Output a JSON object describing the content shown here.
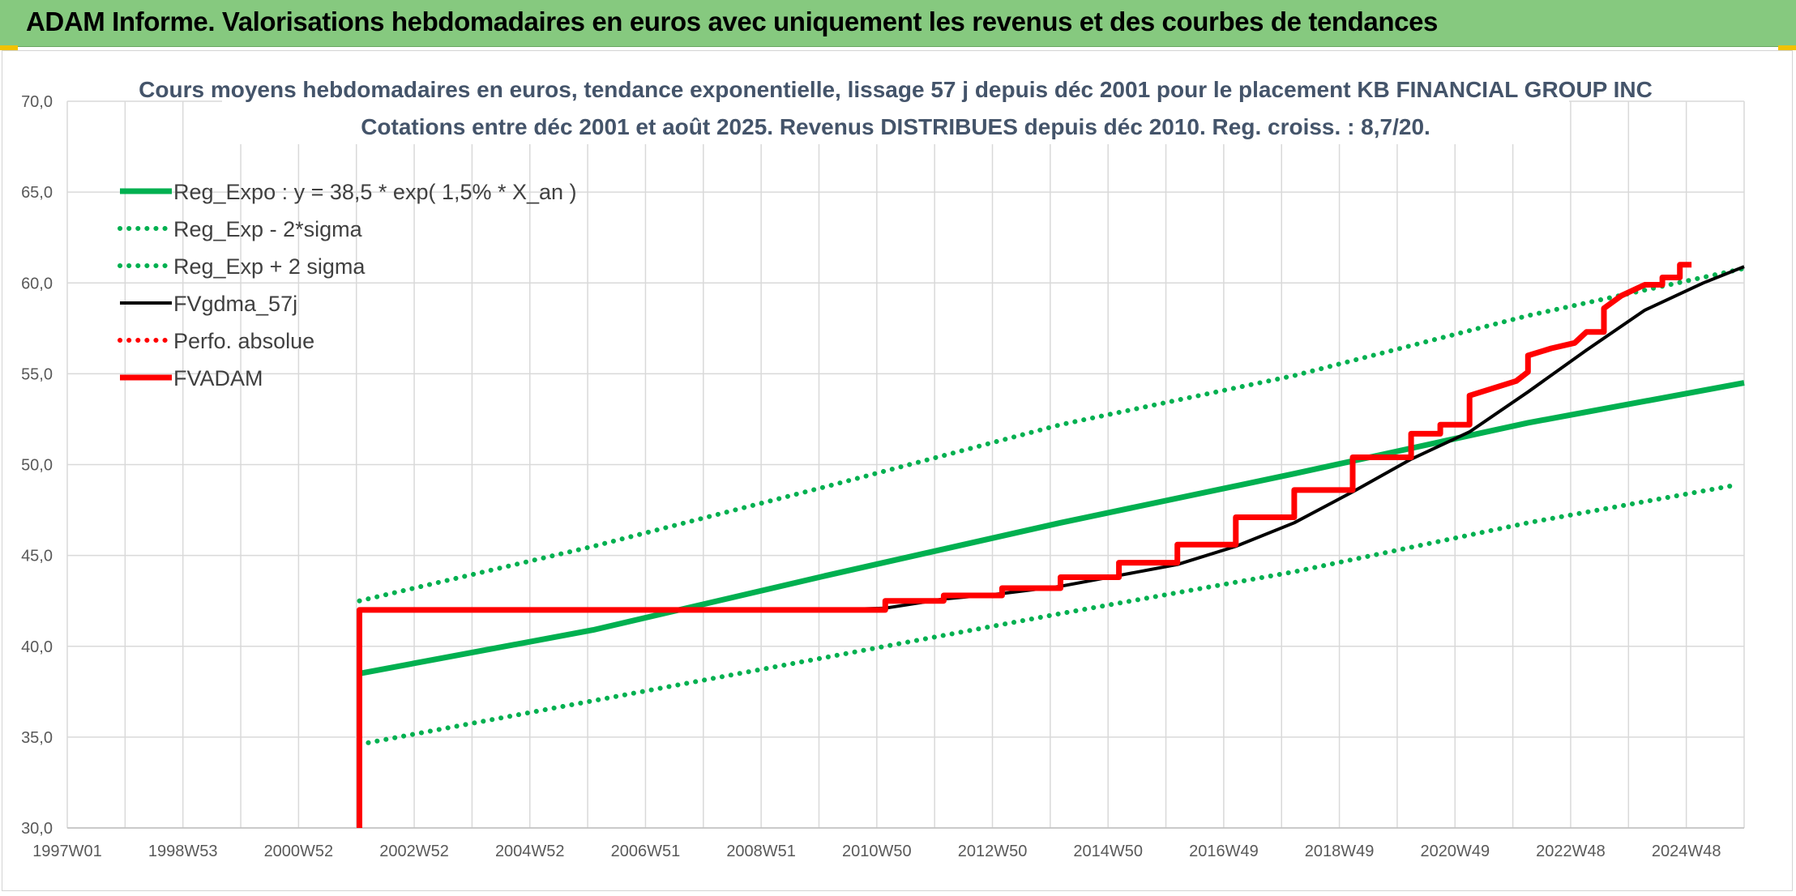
{
  "header": {
    "title": "ADAM Informe. Valorisations hebdomadaires en euros avec uniquement les revenus et des courbes de tendances"
  },
  "colors": {
    "banner": "#86c97f",
    "green": "#00b050",
    "red": "#ff0000",
    "black": "#000000",
    "grid": "#d9d9d9"
  },
  "chart_data": {
    "type": "line",
    "title": "Cours moyens hebdomadaires en euros, tendance exponentielle, lissage 57 j depuis déc 2001 pour le placement KB FINANCIAL GROUP INC",
    "subtitle": "Cotations entre déc 2001 et août 2025. Revenus DISTRIBUES depuis déc 2010. Reg. croiss. : 8,7/20.",
    "xlabel": "",
    "ylabel": "",
    "x_tick_labels": [
      "1997W01",
      "1998W53",
      "2000W52",
      "2002W52",
      "2004W52",
      "2006W51",
      "2008W51",
      "2010W50",
      "2012W50",
      "2014W50",
      "2016W49",
      "2018W49",
      "2020W49",
      "2022W48",
      "2024W48"
    ],
    "x_range": [
      1997.0,
      2025.7
    ],
    "y_tick_labels": [
      "30,0",
      "35,0",
      "40,0",
      "45,0",
      "50,0",
      "55,0",
      "60,0",
      "65,0",
      "70,0"
    ],
    "ylim": [
      30,
      70
    ],
    "grid": true,
    "legend_position": "top-left",
    "series": [
      {
        "name": "Reg_Expo : y = 38,5 * exp( 1,5% *  X_an )",
        "style": "solid",
        "color": "#00b050",
        "points": [
          [
            2002.0,
            38.5
          ],
          [
            2006.0,
            40.9
          ],
          [
            2010.0,
            43.9
          ],
          [
            2014.0,
            46.8
          ],
          [
            2018.0,
            49.5
          ],
          [
            2022.0,
            52.3
          ],
          [
            2025.7,
            54.5
          ]
        ]
      },
      {
        "name": "Reg_Exp - 2*sigma",
        "style": "dotted",
        "color": "#00b050",
        "points": [
          [
            2002.0,
            34.6
          ],
          [
            2006.0,
            37.0
          ],
          [
            2010.0,
            39.4
          ],
          [
            2014.0,
            41.8
          ],
          [
            2018.0,
            44.1
          ],
          [
            2022.0,
            46.8
          ],
          [
            2025.6,
            48.9
          ]
        ]
      },
      {
        "name": "Reg_Exp + 2 sigma",
        "style": "dotted",
        "color": "#00b050",
        "points": [
          [
            2002.0,
            42.5
          ],
          [
            2006.0,
            45.5
          ],
          [
            2010.0,
            48.8
          ],
          [
            2014.0,
            52.2
          ],
          [
            2018.0,
            54.9
          ],
          [
            2022.0,
            58.2
          ],
          [
            2025.7,
            60.8
          ]
        ]
      },
      {
        "name": "FVgdma_57j",
        "style": "solid",
        "color": "#000000",
        "points": [
          [
            2010.0,
            42.0
          ],
          [
            2011.0,
            42.1
          ],
          [
            2012.0,
            42.6
          ],
          [
            2013.0,
            42.9
          ],
          [
            2014.0,
            43.3
          ],
          [
            2015.0,
            43.9
          ],
          [
            2016.0,
            44.5
          ],
          [
            2017.0,
            45.5
          ],
          [
            2018.0,
            46.8
          ],
          [
            2019.0,
            48.5
          ],
          [
            2020.0,
            50.3
          ],
          [
            2021.0,
            51.8
          ],
          [
            2022.0,
            54.0
          ],
          [
            2023.0,
            56.3
          ],
          [
            2024.0,
            58.5
          ],
          [
            2025.0,
            60.0
          ],
          [
            2025.7,
            60.9
          ]
        ]
      },
      {
        "name": "Perfo. absolue",
        "style": "dotted",
        "color": "#ff0000",
        "points": []
      },
      {
        "name": "FVADAM",
        "style": "solid",
        "color": "#ff0000",
        "points": [
          [
            2002.0,
            30.0
          ],
          [
            2002.0,
            42.0
          ],
          [
            2011.0,
            42.0
          ],
          [
            2011.0,
            42.5
          ],
          [
            2012.0,
            42.5
          ],
          [
            2012.0,
            42.8
          ],
          [
            2013.0,
            42.8
          ],
          [
            2013.0,
            43.2
          ],
          [
            2014.0,
            43.2
          ],
          [
            2014.0,
            43.8
          ],
          [
            2015.0,
            43.8
          ],
          [
            2015.0,
            44.6
          ],
          [
            2016.0,
            44.6
          ],
          [
            2016.0,
            45.6
          ],
          [
            2017.0,
            45.6
          ],
          [
            2017.0,
            47.1
          ],
          [
            2018.0,
            47.1
          ],
          [
            2018.0,
            48.6
          ],
          [
            2019.0,
            48.6
          ],
          [
            2019.0,
            50.4
          ],
          [
            2020.0,
            50.4
          ],
          [
            2020.0,
            51.7
          ],
          [
            2020.5,
            51.7
          ],
          [
            2020.5,
            52.2
          ],
          [
            2021.0,
            52.2
          ],
          [
            2021.0,
            53.8
          ],
          [
            2021.4,
            54.2
          ],
          [
            2021.8,
            54.6
          ],
          [
            2022.0,
            55.1
          ],
          [
            2022.0,
            56.0
          ],
          [
            2022.4,
            56.4
          ],
          [
            2022.8,
            56.7
          ],
          [
            2023.0,
            57.3
          ],
          [
            2023.3,
            57.3
          ],
          [
            2023.3,
            58.6
          ],
          [
            2023.6,
            59.3
          ],
          [
            2024.0,
            59.9
          ],
          [
            2024.3,
            59.9
          ],
          [
            2024.3,
            60.3
          ],
          [
            2024.6,
            60.3
          ],
          [
            2024.6,
            61.0
          ],
          [
            2024.8,
            61.0
          ]
        ]
      }
    ]
  }
}
